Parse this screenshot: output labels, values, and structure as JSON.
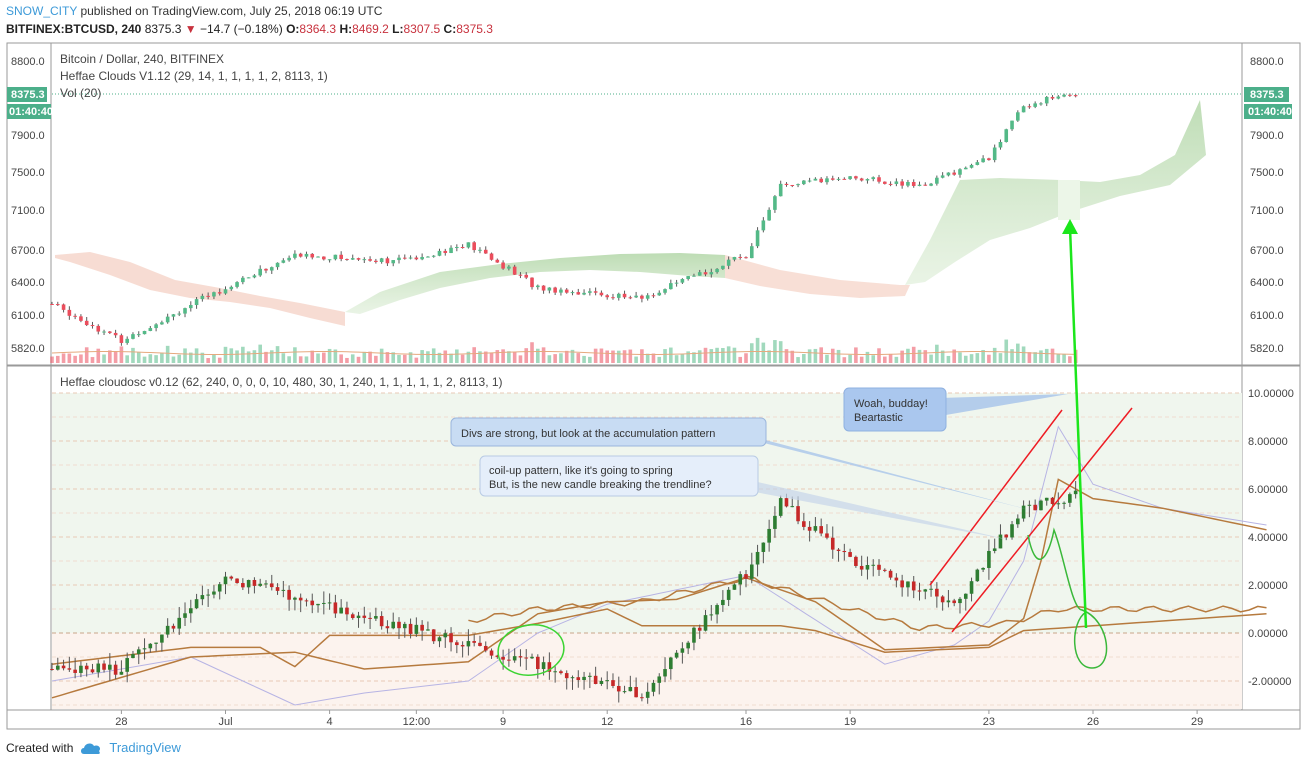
{
  "header": {
    "user": "SNOW_CITY",
    "published_text": " published on TradingView.com, July 25, 2018 06:19 UTC",
    "symbol": "BITFINEX:BTCUSD, 240",
    "last": "8375.3",
    "change_arrow": "▼",
    "change": "−14.7 (−0.18%)",
    "o_label": "O:",
    "o_value": "8364.3",
    "h_label": "H:",
    "h_value": "8469.2",
    "l_label": "L:",
    "l_value": "8307.5",
    "c_label": "C:",
    "c_value": "8375.3"
  },
  "price_pane": {
    "legend": [
      "Bitcoin / Dollar, 240, BITFINEX",
      "Heffae Clouds V1.12 (29, 14, 1, 1, 1, 1, 2, 8113, 1)",
      "Vol (20)"
    ],
    "last_price_label": "8375.3",
    "countdown_label": "01:40:40",
    "y_ticks": [
      "8800.0",
      "7900.0",
      "7500.0",
      "7100.0",
      "6700.0",
      "6400.0",
      "6100.0",
      "5820.0"
    ]
  },
  "osc_pane": {
    "legend": "Heffae cloudosc v0.12 (62, 240, 0, 0, 0, 10, 480, 30, 1, 240, 1, 1, 1, 1, 1, 2, 8113, 1)",
    "y_ticks": [
      "10.00000",
      "8.00000",
      "6.00000",
      "4.00000",
      "2.00000",
      "0.00000",
      "-2.00000"
    ]
  },
  "x_ticks": [
    "28",
    "Jul",
    "4",
    "12:00",
    "9",
    "12",
    "16",
    "19",
    "23",
    "26",
    "29"
  ],
  "annotations": {
    "callout_1": "Divs are strong, but look at the accumulation pattern",
    "callout_2_line1": "coil-up pattern, like it's going to spring",
    "callout_2_line2": "But, is the new candle breaking the trendline?",
    "callout_3_line1": "Woah, budday!",
    "callout_3_line2": "Beartastic"
  },
  "footer": {
    "created_with": "Created with",
    "brand": "TradingView"
  },
  "colors": {
    "up": "#53b987",
    "down": "#eb4d5c",
    "accent": "#3d9ad8",
    "last_price": "#4caf8a"
  },
  "chart_data": [
    {
      "type": "candlestick",
      "title": "Bitcoin / Dollar, 240, BITFINEX",
      "ylim": [
        5700,
        8900
      ],
      "x_range": [
        "Jun 26",
        "Jul 31"
      ],
      "key_closes": [
        {
          "x": "Jun 26",
          "y": 6200
        },
        {
          "x": "Jun 28",
          "y": 5880
        },
        {
          "x": "Jul 1",
          "y": 6350
        },
        {
          "x": "Jul 3",
          "y": 6650
        },
        {
          "x": "Jul 6",
          "y": 6600
        },
        {
          "x": "Jul 8",
          "y": 6750
        },
        {
          "x": "Jul 10",
          "y": 6350
        },
        {
          "x": "Jul 13",
          "y": 6250
        },
        {
          "x": "Jul 16",
          "y": 6650
        },
        {
          "x": "Jul 17",
          "y": 7350
        },
        {
          "x": "Jul 19",
          "y": 7450
        },
        {
          "x": "Jul 21",
          "y": 7350
        },
        {
          "x": "Jul 23",
          "y": 7650
        },
        {
          "x": "Jul 24",
          "y": 8250
        },
        {
          "x": "Jul 25",
          "y": 8375.3
        }
      ]
    },
    {
      "type": "line",
      "title": "Heffae cloudosc v0.12",
      "ylim": [
        -3,
        10
      ],
      "x_range": [
        "Jun 26",
        "Jul 31"
      ],
      "key_values": [
        {
          "x": "Jun 28",
          "y": -1.5
        },
        {
          "x": "Jul 1",
          "y": 2.3
        },
        {
          "x": "Jul 10",
          "y": -1.3
        },
        {
          "x": "Jul 13",
          "y": -2.5
        },
        {
          "x": "Jul 16",
          "y": 2.5
        },
        {
          "x": "Jul 17",
          "y": 5.5
        },
        {
          "x": "Jul 19",
          "y": 3.0
        },
        {
          "x": "Jul 22",
          "y": 1.2
        },
        {
          "x": "Jul 24",
          "y": 5.2
        },
        {
          "x": "Jul 28",
          "y": 6.5
        },
        {
          "x": "Jul 31",
          "y": 4.3
        }
      ]
    }
  ]
}
